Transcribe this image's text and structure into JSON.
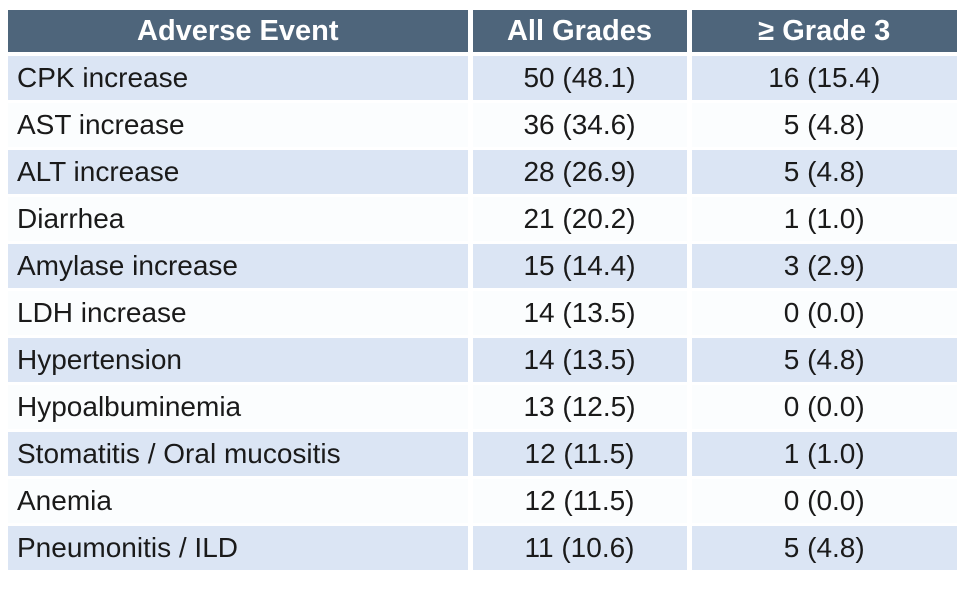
{
  "chart_data": {
    "type": "table",
    "columns": [
      "Adverse Event",
      "All Grades",
      "≥ Grade 3"
    ],
    "rows": [
      [
        "CPK increase",
        "50 (48.1)",
        "16 (15.4)"
      ],
      [
        "AST increase",
        "36 (34.6)",
        "5 (4.8)"
      ],
      [
        "ALT increase",
        "28 (26.9)",
        "5 (4.8)"
      ],
      [
        "Diarrhea",
        "21 (20.2)",
        "1 (1.0)"
      ],
      [
        "Amylase increase",
        "15 (14.4)",
        "3 (2.9)"
      ],
      [
        "LDH increase",
        "14 (13.5)",
        "0 (0.0)"
      ],
      [
        "Hypertension",
        "14 (13.5)",
        "5 (4.8)"
      ],
      [
        "Hypoalbuminemia",
        "13 (12.5)",
        "0 (0.0)"
      ],
      [
        "Stomatitis / Oral mucositis",
        "12 (11.5)",
        "1 (1.0)"
      ],
      [
        "Anemia",
        "12 (11.5)",
        "0 (0.0)"
      ],
      [
        "Pneumonitis / ILD",
        "11 (10.6)",
        "5 (4.8)"
      ]
    ]
  },
  "colors": {
    "header_bg": "#4e657b",
    "header_text": "#ffffff",
    "row_stripe": "#dbe5f4",
    "row_plain": "#fbfdfe",
    "body_text": "#1a1a1a",
    "gutter": "#ffffff"
  }
}
